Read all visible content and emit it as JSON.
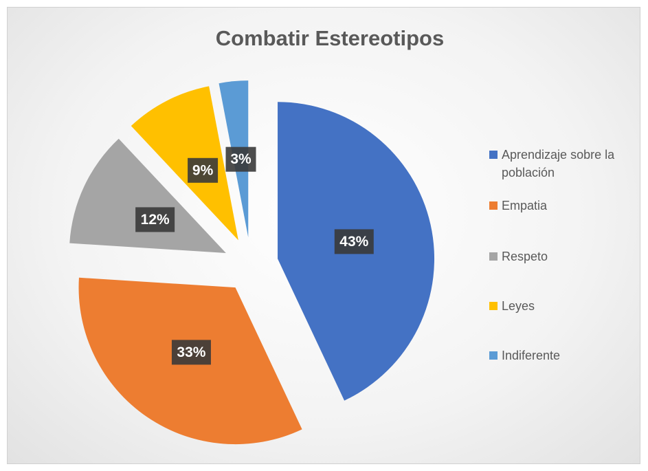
{
  "chart_data": {
    "type": "pie",
    "title": "Combatir Estereotipos",
    "categories": [
      "Aprendizaje sobre la población",
      "Empatia",
      "Respeto",
      "Leyes",
      "Indiferente"
    ],
    "values": [
      43,
      33,
      12,
      9,
      3
    ],
    "value_labels": [
      "43%",
      "33%",
      "12%",
      "9%",
      "3%"
    ],
    "colors": [
      "#4472c4",
      "#ed7d31",
      "#a5a5a5",
      "#ffc000",
      "#5b9bd5"
    ],
    "legend": "right"
  }
}
